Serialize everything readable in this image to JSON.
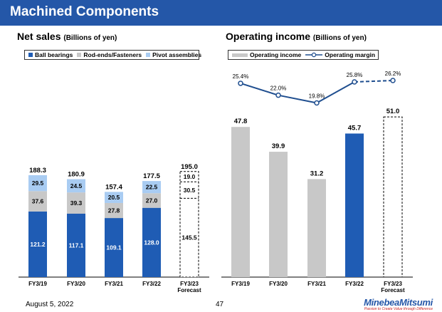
{
  "header": {
    "title": "Machined Components"
  },
  "colors": {
    "ball_bearings": "#1f5cb4",
    "rod_ends": "#c8c8c8",
    "pivot": "#a9ccf2",
    "operating_income": "#c8c8c8",
    "highlight": "#1f5cb4",
    "margin_line": "#1f4e8f",
    "title_bar": "#2457a8"
  },
  "left": {
    "title": "Net sales",
    "unit": "(Billions of yen)"
  },
  "right": {
    "title": "Operating income",
    "unit": "(Billions of yen)"
  },
  "chart_data": [
    {
      "type": "bar",
      "stacked": true,
      "title": "Net sales",
      "unit": "Billions of yen",
      "categories": [
        "FY3/19",
        "FY3/20",
        "FY3/21",
        "FY3/22",
        "FY3/23"
      ],
      "category_sublabels": [
        "",
        "",
        "",
        "",
        "Forecast"
      ],
      "series": [
        {
          "name": "Ball bearings",
          "values": [
            121.2,
            117.1,
            109.1,
            128.0,
            145.5
          ]
        },
        {
          "name": "Rod-ends/Fasteners",
          "values": [
            37.6,
            39.3,
            27.8,
            27.0,
            30.5
          ]
        },
        {
          "name": "Pivot assemblies",
          "values": [
            29.5,
            24.5,
            20.5,
            22.5,
            19.0
          ]
        }
      ],
      "totals": [
        "188.3",
        "180.9",
        "157.4",
        "177.5",
        "195.0"
      ],
      "value_labels": [
        [
          "121.2",
          "117.1",
          "109.1",
          "128.0",
          "145.5"
        ],
        [
          "37.6",
          "39.3",
          "27.8",
          "27.0",
          "30.5"
        ],
        [
          "29.5",
          "24.5",
          "20.5",
          "22.5",
          "19.0"
        ]
      ],
      "forecast_index": 4,
      "ylim": [
        0,
        200
      ],
      "legend_position": "top"
    },
    {
      "type": "bar+line",
      "title": "Operating income",
      "unit": "Billions of yen",
      "categories": [
        "FY3/19",
        "FY3/20",
        "FY3/21",
        "FY3/22",
        "FY3/23"
      ],
      "category_sublabels": [
        "",
        "",
        "",
        "",
        "Forecast"
      ],
      "series": [
        {
          "name": "Operating income",
          "type": "bar",
          "values": [
            47.8,
            39.9,
            31.2,
            45.7,
            51.0
          ],
          "labels": [
            "47.8",
            "39.9",
            "31.2",
            "45.7",
            "51.0"
          ]
        },
        {
          "name": "Operating margin",
          "type": "line",
          "values": [
            25.4,
            22.0,
            19.8,
            25.8,
            26.2
          ],
          "labels": [
            "25.4%",
            "22.0%",
            "19.8%",
            "25.8%",
            "26.2%"
          ]
        }
      ],
      "highlight_index": 3,
      "forecast_index": 4,
      "ylim_bar": [
        0,
        60
      ],
      "ylim_margin": [
        15,
        30
      ],
      "legend_position": "top"
    }
  ],
  "footer": {
    "date": "August 5, 2022",
    "page": "47",
    "brand": "MinebeaMitsumi",
    "tagline": "Passion to Create Value through Difference"
  }
}
